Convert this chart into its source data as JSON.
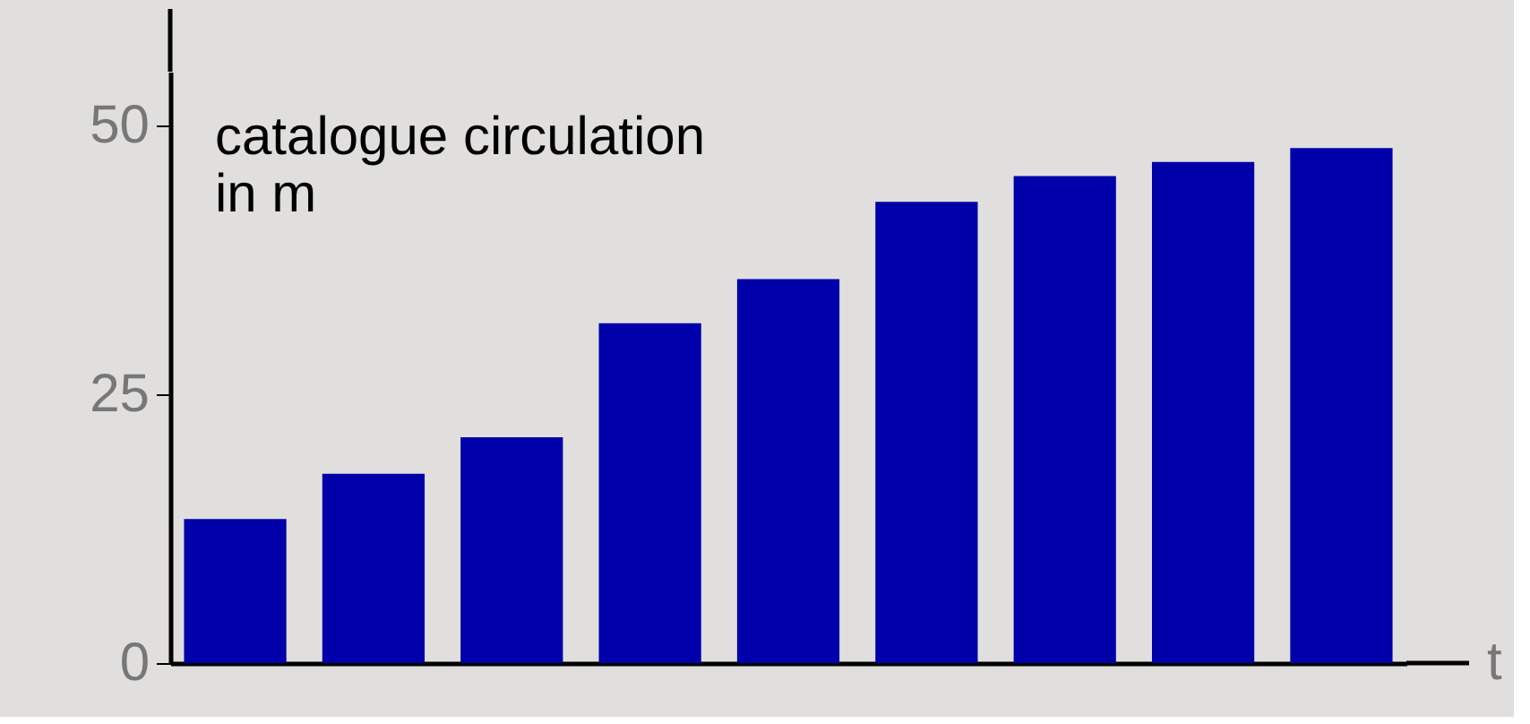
{
  "chart_data": {
    "type": "bar",
    "ylabel": "catalogue circulation\nin m",
    "xlabel": "t",
    "categories": [
      null,
      null,
      null,
      null,
      null,
      null,
      null,
      null,
      null
    ],
    "values": [
      13.4,
      17.6,
      21.0,
      31.6,
      35.7,
      42.9,
      45.3,
      46.6,
      47.9
    ],
    "color": "#0000aa",
    "ylim": [
      0,
      55
    ],
    "yticks": [
      0,
      25,
      50
    ]
  }
}
